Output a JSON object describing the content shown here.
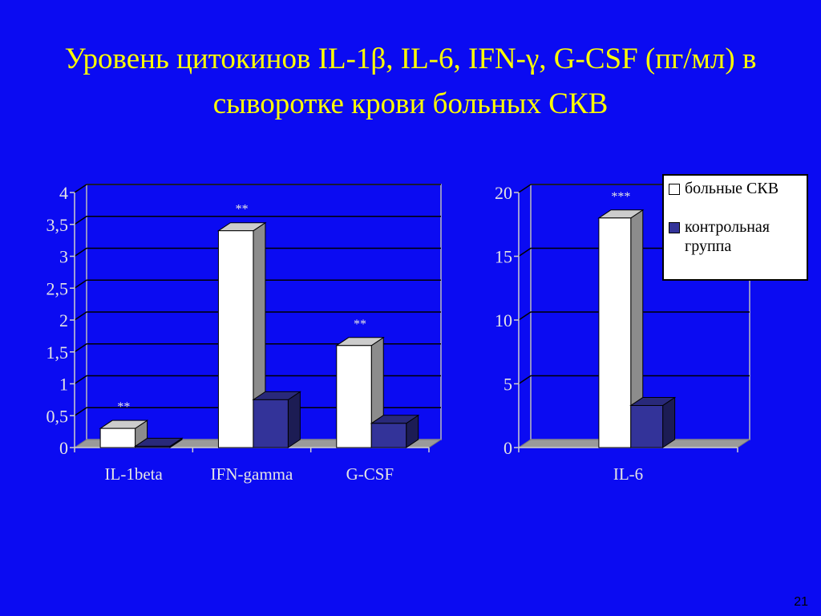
{
  "title": "Уровень цитокинов IL-1β, IL-6, IFN-γ, G-CSF (пг/мл) в сыворотке крови больных СКВ",
  "page_number": "21",
  "chart_data": [
    {
      "type": "bar3d",
      "categories": [
        "IL-1beta",
        "IFN-gamma",
        "G-CSF"
      ],
      "series": [
        {
          "color": "#ffffff",
          "values": [
            0.3,
            3.4,
            1.6
          ]
        },
        {
          "color": "#333399",
          "values": [
            0.02,
            0.75,
            0.38
          ]
        }
      ],
      "annotations": [
        {
          "text": "**",
          "category": "IL-1beta"
        },
        {
          "text": "**",
          "category": "IFN-gamma"
        },
        {
          "text": "**",
          "category": "G-CSF"
        }
      ],
      "ylim": [
        0,
        4
      ],
      "yticks": [
        0,
        {
          "value": 0.5,
          "label": "0,5"
        },
        1,
        {
          "value": 1.5,
          "label": "1,5"
        },
        2,
        {
          "value": 2.5,
          "label": "2,5"
        },
        3,
        {
          "value": 3.5,
          "label": "3,5"
        },
        4
      ],
      "grid": true
    },
    {
      "type": "bar3d",
      "categories": [
        "IL-6"
      ],
      "series": [
        {
          "name": "больные СКВ",
          "color": "#ffffff",
          "values": [
            18
          ]
        },
        {
          "name": "контрольная группа",
          "color": "#333399",
          "values": [
            3.3
          ]
        }
      ],
      "annotations": [
        {
          "text": "***",
          "category": "IL-6"
        }
      ],
      "ylim": [
        0,
        20
      ],
      "yticks": [
        0,
        5,
        10,
        15,
        20
      ],
      "grid": true,
      "legend": "upper right"
    }
  ]
}
